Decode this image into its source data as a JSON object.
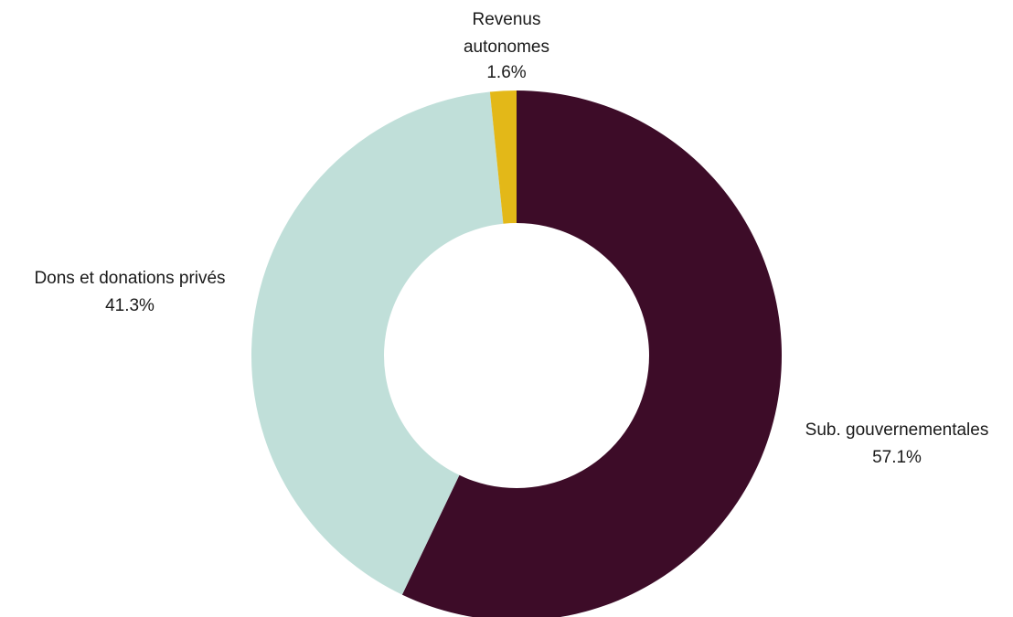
{
  "chart_data": {
    "type": "pie",
    "variant": "donut",
    "categories": [
      "Sub. gouvernementales",
      "Dons et donations privés",
      "Revenus autonomes"
    ],
    "values": [
      57.1,
      41.3,
      1.6
    ],
    "value_labels": [
      "57.1%",
      "41.3%",
      "1.6%"
    ],
    "colors": [
      "#3d0c28",
      "#c0dfd9",
      "#e3b818"
    ],
    "start_angle": "12 o'clock",
    "direction": "clockwise",
    "legend": "none",
    "slices": [
      {
        "name_lines": [
          "Sub. gouvernementales"
        ],
        "value_label": "57.1%"
      },
      {
        "name_lines": [
          "Dons et donations privés"
        ],
        "value_label": "41.3%"
      },
      {
        "name_lines": [
          "Revenus",
          "autonomes"
        ],
        "value_label": "1.6%"
      }
    ]
  }
}
